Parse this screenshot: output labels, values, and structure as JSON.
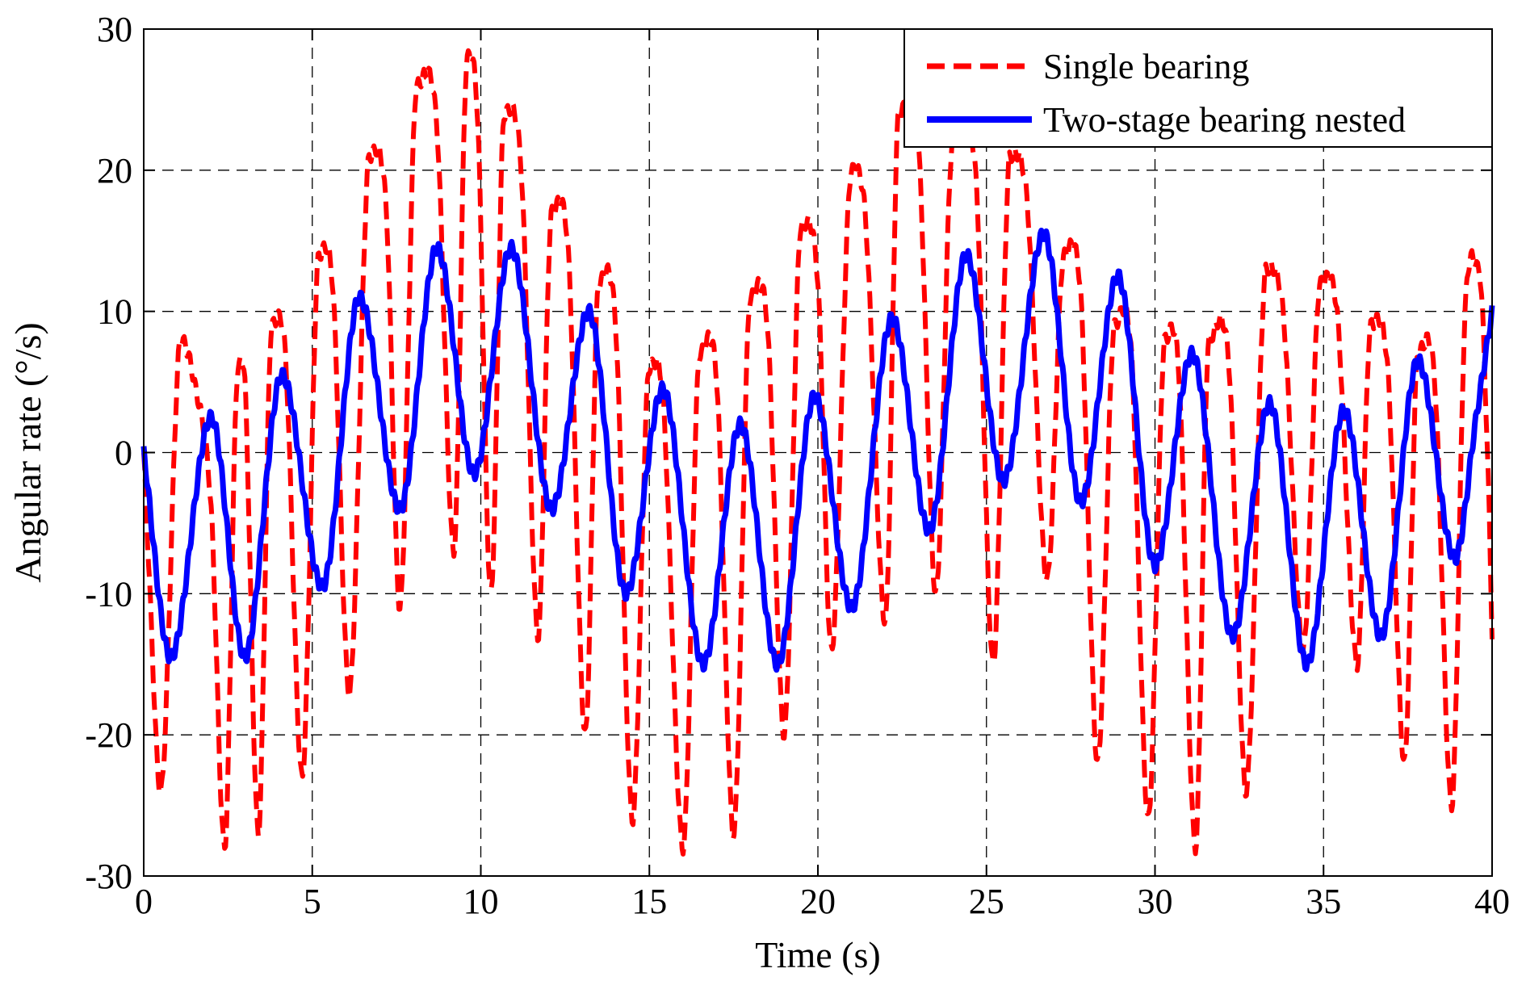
{
  "chart_data": {
    "type": "line",
    "xlabel": "Time (s)",
    "ylabel": "Angular rate (°/s)",
    "xlim": [
      0,
      40
    ],
    "ylim": [
      -30,
      30
    ],
    "xticks": [
      0,
      5,
      10,
      15,
      20,
      25,
      30,
      35,
      40
    ],
    "yticks": [
      -30,
      -20,
      -10,
      0,
      10,
      20,
      30
    ],
    "xtick_labels": [
      "0",
      "5",
      "10",
      "15",
      "20",
      "25",
      "30",
      "35",
      "40"
    ],
    "ytick_labels": [
      "-30",
      "-20",
      "-10",
      "0",
      "10",
      "20",
      "30"
    ],
    "grid": true,
    "legend_position": "top-right",
    "series": [
      {
        "name": "Single bearing",
        "color": "#ff0000",
        "style": "dashed",
        "x": [
          0,
          0.15,
          0.5,
          1.1,
          1.5,
          2.0,
          2.4,
          2.8,
          3.0,
          3.4,
          3.8,
          4.2,
          4.7,
          5.2,
          5.6,
          6.1,
          6.7,
          7.2,
          7.6,
          8.1,
          8.7,
          9.2,
          9.6,
          9.9,
          10.3,
          10.7,
          11.2,
          11.7,
          12.1,
          12.6,
          13.1,
          13.5,
          14.0,
          14.5,
          15.0,
          15.4,
          16.0,
          16.5,
          17.0,
          17.5,
          18.0,
          18.5,
          19.0,
          19.5,
          20.0,
          20.4,
          21.0,
          21.4,
          22.0,
          22.4,
          23.0,
          23.5,
          24.0,
          24.7,
          25.2,
          25.7,
          26.2,
          26.8,
          27.3,
          27.8,
          28.3,
          28.8,
          29.3,
          29.8,
          30.3,
          30.7,
          31.2,
          31.6,
          32.2,
          32.7,
          33.3,
          33.8,
          34.4,
          34.9,
          35.4,
          36.0,
          36.4,
          36.9,
          37.4,
          37.8,
          38.3,
          38.8,
          39.2,
          39.6,
          39.9,
          40.0
        ],
        "y": [
          0,
          -8,
          -24,
          8,
          5,
          -4,
          -28,
          6,
          5,
          -27,
          9,
          7,
          -23,
          14,
          12,
          -17,
          21,
          17,
          -11,
          26,
          23,
          -7,
          28,
          24,
          -10,
          24,
          20,
          -13,
          17,
          14,
          -20,
          12,
          9,
          -26,
          6,
          4,
          -28,
          7,
          5,
          -27,
          11,
          9,
          -20,
          16,
          12,
          -14,
          20,
          17,
          -12,
          24,
          21,
          -10,
          22,
          19,
          -15,
          21,
          18,
          -9,
          14,
          11,
          -22,
          9,
          7,
          -26,
          8,
          6,
          -28,
          8,
          6,
          -24,
          13,
          10,
          -14,
          12,
          10,
          -15,
          9,
          6,
          -22,
          7,
          5,
          -25,
          10,
          13,
          -3,
          -13
        ]
      },
      {
        "name": "Two-stage bearing nested",
        "color": "#0000ff",
        "style": "solid",
        "x": [
          0,
          0.8,
          2.0,
          3.0,
          4.1,
          5.3,
          6.4,
          7.6,
          8.7,
          9.8,
          10.9,
          12.1,
          13.2,
          14.3,
          15.4,
          16.6,
          17.7,
          18.8,
          19.9,
          21.0,
          22.2,
          23.3,
          24.4,
          25.5,
          26.7,
          27.8,
          28.9,
          30.0,
          31.1,
          32.3,
          33.4,
          34.5,
          35.6,
          36.7,
          37.8,
          38.9,
          39.5,
          40.0
        ],
        "y": [
          0,
          -14.5,
          2.5,
          -14.5,
          5.5,
          -9.5,
          11,
          -4,
          14.5,
          -1.5,
          14.5,
          -4,
          10,
          -10,
          4.5,
          -15,
          2,
          -15,
          4,
          -11,
          9.5,
          -5.5,
          14,
          -2,
          15.5,
          -3.5,
          12.5,
          -8,
          7,
          -13,
          3.5,
          -15,
          3,
          -13,
          6.5,
          -7.5,
          2,
          10
        ]
      }
    ]
  }
}
